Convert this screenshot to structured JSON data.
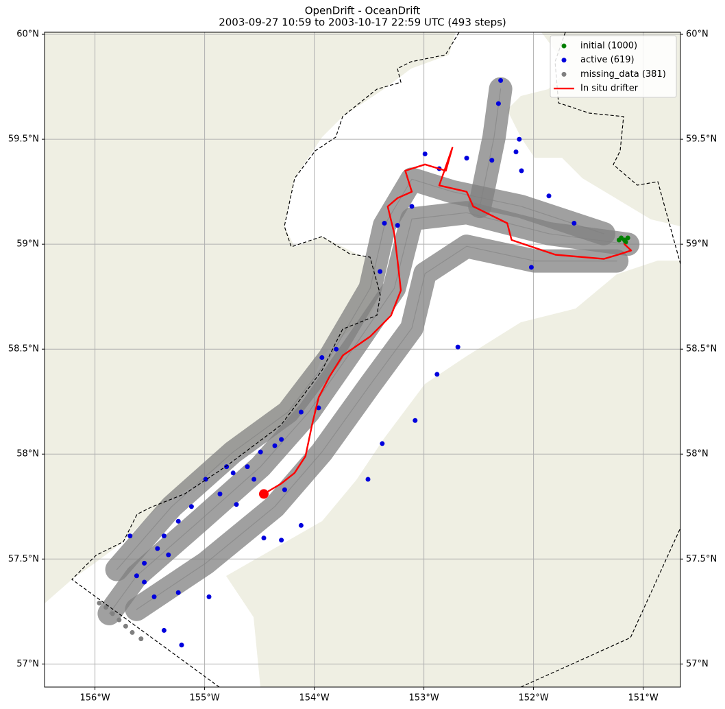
{
  "chart_data": {
    "type": "map",
    "title": "OpenDrift - OceanDrift",
    "subtitle": "2003-09-27 10:59 to 2003-10-17 22:59 UTC (493 steps)",
    "xlim": [
      -156.46,
      -150.66
    ],
    "ylim": [
      56.89,
      60.01
    ],
    "grid": true,
    "xticks": [
      {
        "value": -156,
        "label": "156°W"
      },
      {
        "value": -155,
        "label": "155°W"
      },
      {
        "value": -154,
        "label": "154°W"
      },
      {
        "value": -153,
        "label": "153°W"
      },
      {
        "value": -152,
        "label": "152°W"
      },
      {
        "value": -151,
        "label": "151°W"
      }
    ],
    "yticks": [
      {
        "value": 57,
        "label": "57°N"
      },
      {
        "value": 57.5,
        "label": "57.5°N"
      },
      {
        "value": 58,
        "label": "58°N"
      },
      {
        "value": 58.5,
        "label": "58.5°N"
      },
      {
        "value": 59,
        "label": "59°N"
      },
      {
        "value": 59.5,
        "label": "59.5°N"
      },
      {
        "value": 60,
        "label": "60°N"
      }
    ],
    "trajectory_color": "gray",
    "trajectories": [
      {
        "x": [
          -151.14,
          -151.86,
          -152.61,
          -153.11,
          -153.27,
          -153.61,
          -154.05,
          -154.49,
          -155.05,
          -155.62,
          -155.87
        ],
        "y": [
          59.0,
          59.05,
          59.15,
          59.12,
          58.79,
          58.53,
          58.2,
          57.94,
          57.68,
          57.42,
          57.24
        ]
      },
      {
        "x": [
          -151.24,
          -151.99,
          -152.61,
          -152.99,
          -153.11,
          -153.49,
          -153.93,
          -154.36,
          -154.99,
          -155.62
        ],
        "y": [
          58.92,
          58.92,
          58.99,
          58.86,
          58.6,
          58.33,
          58.01,
          57.75,
          57.48,
          57.26
        ]
      },
      {
        "x": [
          -151.36,
          -152.11,
          -152.74,
          -153.11,
          -153.36,
          -153.49,
          -153.86,
          -154.24,
          -154.74,
          -155.3,
          -155.8
        ],
        "y": [
          59.05,
          59.18,
          59.25,
          59.31,
          59.09,
          58.79,
          58.46,
          58.2,
          58.01,
          57.75,
          57.45
        ]
      },
      {
        "x": [
          -152.49,
          -152.36,
          -152.3
        ],
        "y": [
          59.18,
          59.51,
          59.74
        ]
      }
    ],
    "series": [
      {
        "name": "initial (1000)",
        "color": "green",
        "marker": "point",
        "x": [
          -151.17,
          -151.2,
          -151.14,
          -151.16,
          -151.22
        ],
        "y": [
          59.02,
          59.03,
          59.03,
          59.01,
          59.02
        ]
      },
      {
        "name": "active (619)",
        "color": "#0000dd",
        "marker": "point",
        "x": [
          -152.3,
          -152.32,
          -152.13,
          -152.16,
          -152.38,
          -152.11,
          -151.86,
          -151.63,
          -152.02,
          -152.69,
          -152.88,
          -153.08,
          -153.38,
          -153.51,
          -154.12,
          -154.3,
          -154.46,
          -153.96,
          -154.12,
          -153.93,
          -153.8,
          -153.4,
          -154.36,
          -154.3,
          -154.49,
          -154.61,
          -154.74,
          -154.8,
          -154.99,
          -154.86,
          -154.71,
          -155.12,
          -155.24,
          -155.37,
          -155.43,
          -155.33,
          -155.55,
          -155.62,
          -155.68,
          -155.46,
          -155.24,
          -155.37,
          -155.21,
          -155.55,
          -153.36,
          -153.24,
          -153.11,
          -152.86,
          -152.61,
          -152.99,
          -154.55,
          -154.27,
          -154.96
        ],
        "y": [
          59.78,
          59.67,
          59.5,
          59.44,
          59.4,
          59.35,
          59.23,
          59.1,
          58.89,
          58.51,
          58.38,
          58.16,
          58.05,
          57.88,
          57.66,
          57.59,
          57.6,
          58.22,
          58.2,
          58.46,
          58.5,
          58.87,
          58.04,
          58.07,
          58.01,
          57.94,
          57.91,
          57.94,
          57.88,
          57.81,
          57.76,
          57.75,
          57.68,
          57.61,
          57.55,
          57.52,
          57.48,
          57.42,
          57.61,
          57.32,
          57.34,
          57.16,
          57.09,
          57.39,
          59.1,
          59.09,
          59.18,
          59.36,
          59.41,
          59.43,
          57.88,
          57.83,
          57.32
        ]
      },
      {
        "name": "missing_data (381)",
        "color": "gray",
        "marker": "point",
        "x": [
          -155.96,
          -155.9,
          -155.84,
          -155.78,
          -155.72,
          -155.66,
          -155.58
        ],
        "y": [
          57.29,
          57.27,
          57.24,
          57.21,
          57.18,
          57.15,
          57.12
        ]
      },
      {
        "name": "In situ drifter",
        "color": "red",
        "marker": "line",
        "x": [
          -154.46,
          -154.3,
          -154.18,
          -154.08,
          -154.02,
          -153.96,
          -153.86,
          -153.74,
          -153.49,
          -153.3,
          -153.21,
          -153.24,
          -153.27,
          -153.33,
          -153.24,
          -153.11,
          -153.17,
          -152.99,
          -152.8,
          -152.74,
          -152.86,
          -152.61,
          -152.55,
          -152.24,
          -152.2,
          -151.8,
          -151.36,
          -151.23,
          -151.11,
          -151.17
        ],
        "y": [
          57.81,
          57.86,
          57.91,
          57.99,
          58.14,
          58.27,
          58.37,
          58.47,
          58.56,
          58.66,
          58.78,
          58.92,
          59.05,
          59.18,
          59.22,
          59.25,
          59.35,
          59.38,
          59.35,
          59.46,
          59.28,
          59.25,
          59.18,
          59.1,
          59.02,
          58.95,
          58.93,
          58.95,
          58.97,
          59.0
        ]
      }
    ],
    "legend": "upper right"
  }
}
